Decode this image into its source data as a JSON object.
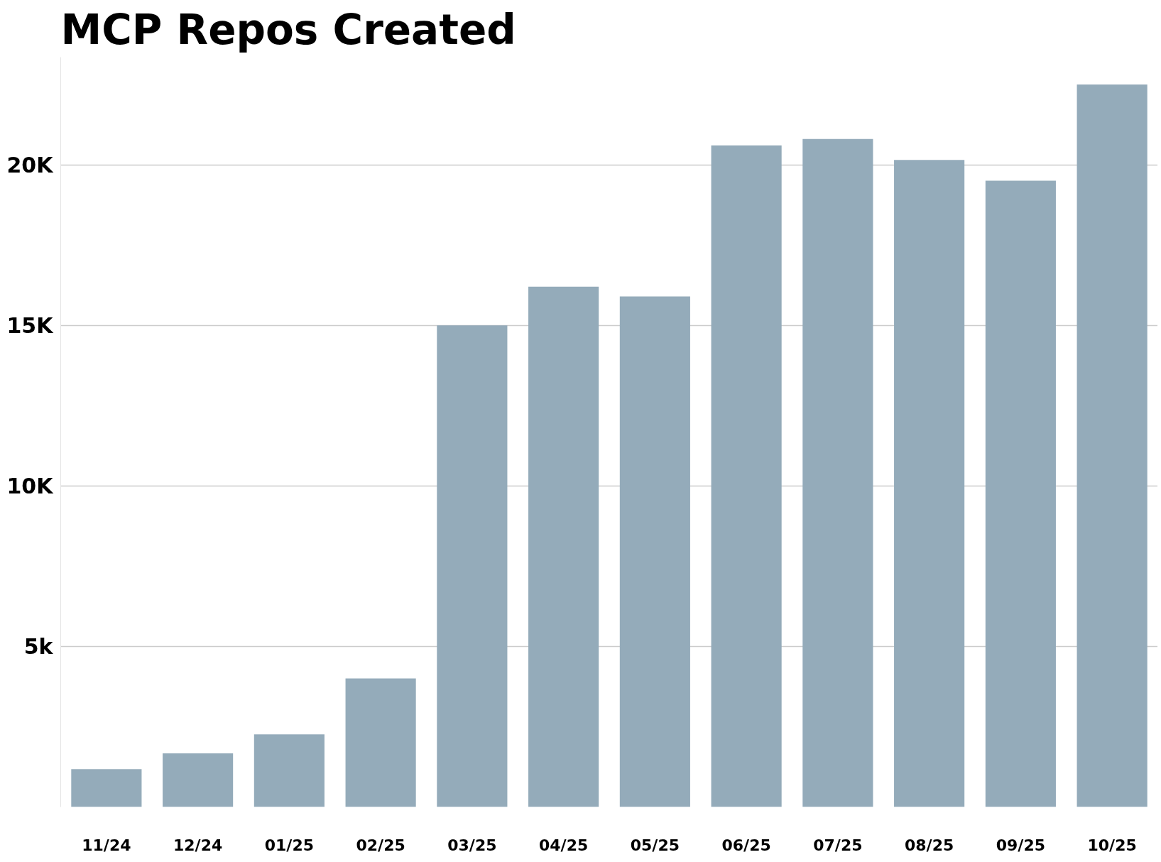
{
  "chart_data": {
    "type": "bar",
    "title": "MCP Repos Created",
    "categories": [
      "11/24",
      "12/24",
      "01/25",
      "02/25",
      "03/25",
      "04/25",
      "05/25",
      "06/25",
      "07/25",
      "08/25",
      "09/25",
      "10/25"
    ],
    "values": [
      1180,
      1670,
      2260,
      4000,
      15000,
      16200,
      15900,
      20600,
      20800,
      20150,
      19500,
      22500
    ],
    "color": "#94abba",
    "ylim": [
      0,
      23350
    ],
    "yticks": [
      {
        "value": 5000,
        "label": "5k"
      },
      {
        "value": 10000,
        "label": "10K"
      },
      {
        "value": 15000,
        "label": "15K"
      },
      {
        "value": 20000,
        "label": "20K"
      }
    ],
    "grid": "y"
  }
}
